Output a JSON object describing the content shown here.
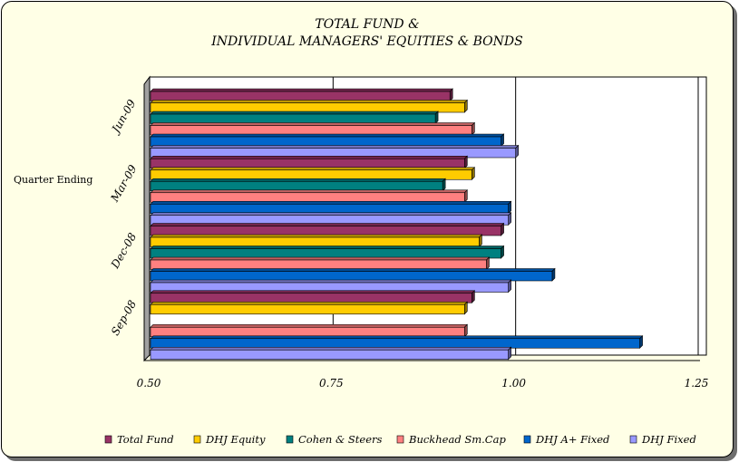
{
  "chart_data": {
    "type": "bar",
    "orientation": "horizontal",
    "title": [
      "TOTAL FUND &",
      "INDIVIDUAL MANAGERS' EQUITIES & BONDS"
    ],
    "ylabel": "Quarter Ending",
    "xlabel": "",
    "categories": [
      "Jun-09",
      "Mar-09",
      "Dec-08",
      "Sep-08"
    ],
    "xlim": [
      0.5,
      1.25
    ],
    "xticks": [
      "0.50",
      "0.75",
      "1.00",
      "1.25"
    ],
    "grid": true,
    "legend_position": "bottom",
    "series": [
      {
        "name": "Total Fund",
        "color": "#993366",
        "values": [
          0.91,
          0.93,
          0.98,
          0.94
        ]
      },
      {
        "name": "DHJ Equity",
        "color": "#ffcc00",
        "values": [
          0.93,
          0.94,
          0.95,
          0.93
        ]
      },
      {
        "name": "Cohen & Steers",
        "color": "#008080",
        "values": [
          0.89,
          0.9,
          0.98,
          null
        ]
      },
      {
        "name": "Buckhead Sm.Cap",
        "color": "#ff8080",
        "values": [
          0.94,
          0.93,
          0.96,
          0.93
        ]
      },
      {
        "name": "DHJ A+ Fixed",
        "color": "#0066cc",
        "values": [
          0.98,
          0.99,
          1.05,
          1.17
        ]
      },
      {
        "name": "DHJ Fixed",
        "color": "#9999ff",
        "values": [
          1.0,
          0.99,
          0.99,
          0.99
        ]
      }
    ]
  }
}
